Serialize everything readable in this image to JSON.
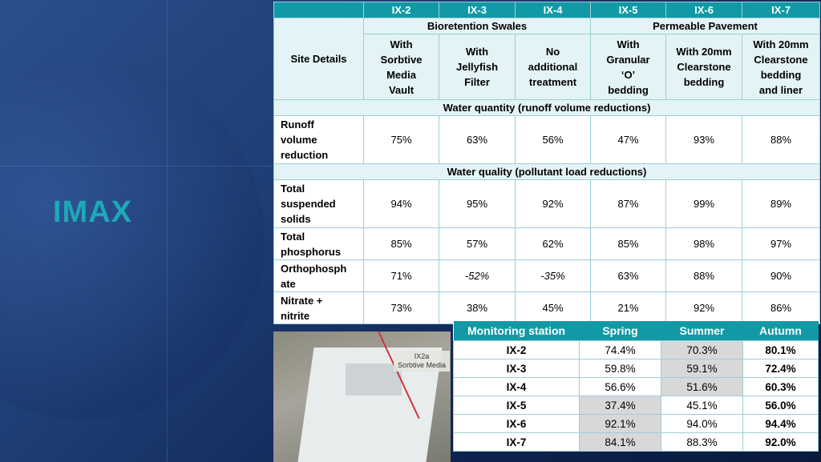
{
  "slide": {
    "title": "IMAX"
  },
  "results_table": {
    "site_header": "Site Details",
    "sites": [
      "IX-2",
      "IX-3",
      "IX-4",
      "IX-5",
      "IX-6",
      "IX-7"
    ],
    "groups": [
      "Bioretention Swales",
      "Permeable Pavement"
    ],
    "treatments": [
      [
        "With",
        "Sorbtive",
        "Media",
        "Vault"
      ],
      [
        "With",
        "Jellyfish",
        "Filter"
      ],
      [
        "No",
        "additional",
        "treatment"
      ],
      [
        "With",
        "Granular",
        "‘O’",
        "bedding"
      ],
      [
        "With 20mm",
        "Clearstone",
        "bedding"
      ],
      [
        "With 20mm",
        "Clearstone",
        "bedding",
        "and liner"
      ]
    ],
    "quantity_section": "Water quantity (runoff volume reductions)",
    "quality_section": "Water quality (pollutant load reductions)",
    "rows": [
      {
        "label": [
          "Runoff",
          "volume",
          "reduction"
        ],
        "values": [
          "75%",
          "63%",
          "56%",
          "47%",
          "93%",
          "88%"
        ]
      },
      {
        "label": [
          "Total",
          "suspended",
          "solids"
        ],
        "values": [
          "94%",
          "95%",
          "92%",
          "87%",
          "99%",
          "89%"
        ]
      },
      {
        "label": [
          "Total",
          "phosphorus"
        ],
        "values": [
          "85%",
          "57%",
          "62%",
          "85%",
          "98%",
          "97%"
        ]
      },
      {
        "label": [
          "Orthophosph",
          "ate"
        ],
        "values": [
          "71%",
          "-52%",
          "-35%",
          "63%",
          "88%",
          "90%"
        ]
      },
      {
        "label": [
          "Nitrate +",
          "nitrite"
        ],
        "values": [
          "73%",
          "38%",
          "45%",
          "21%",
          "92%",
          "86%"
        ]
      }
    ]
  },
  "photo": {
    "label_line1": "IX2a",
    "label_line2": "Sorbtive Media"
  },
  "seasonal_table": {
    "headers": [
      "Monitoring station",
      "Spring",
      "Summer",
      "Autumn"
    ],
    "rows": [
      {
        "station": "IX-2",
        "spring": "74.4%",
        "summer": "70.3%",
        "autumn": "80.1%"
      },
      {
        "station": "IX-3",
        "spring": "59.8%",
        "summer": "59.1%",
        "autumn": "72.4%"
      },
      {
        "station": "IX-4",
        "spring": "56.6%",
        "summer": "51.6%",
        "autumn": "60.3%"
      },
      {
        "station": "IX-5",
        "spring": "37.4%",
        "summer": "45.1%",
        "autumn": "56.0%"
      },
      {
        "station": "IX-6",
        "spring": "92.1%",
        "summer": "94.0%",
        "autumn": "94.4%"
      },
      {
        "station": "IX-7",
        "spring": "84.1%",
        "summer": "88.3%",
        "autumn": "92.0%"
      }
    ]
  }
}
